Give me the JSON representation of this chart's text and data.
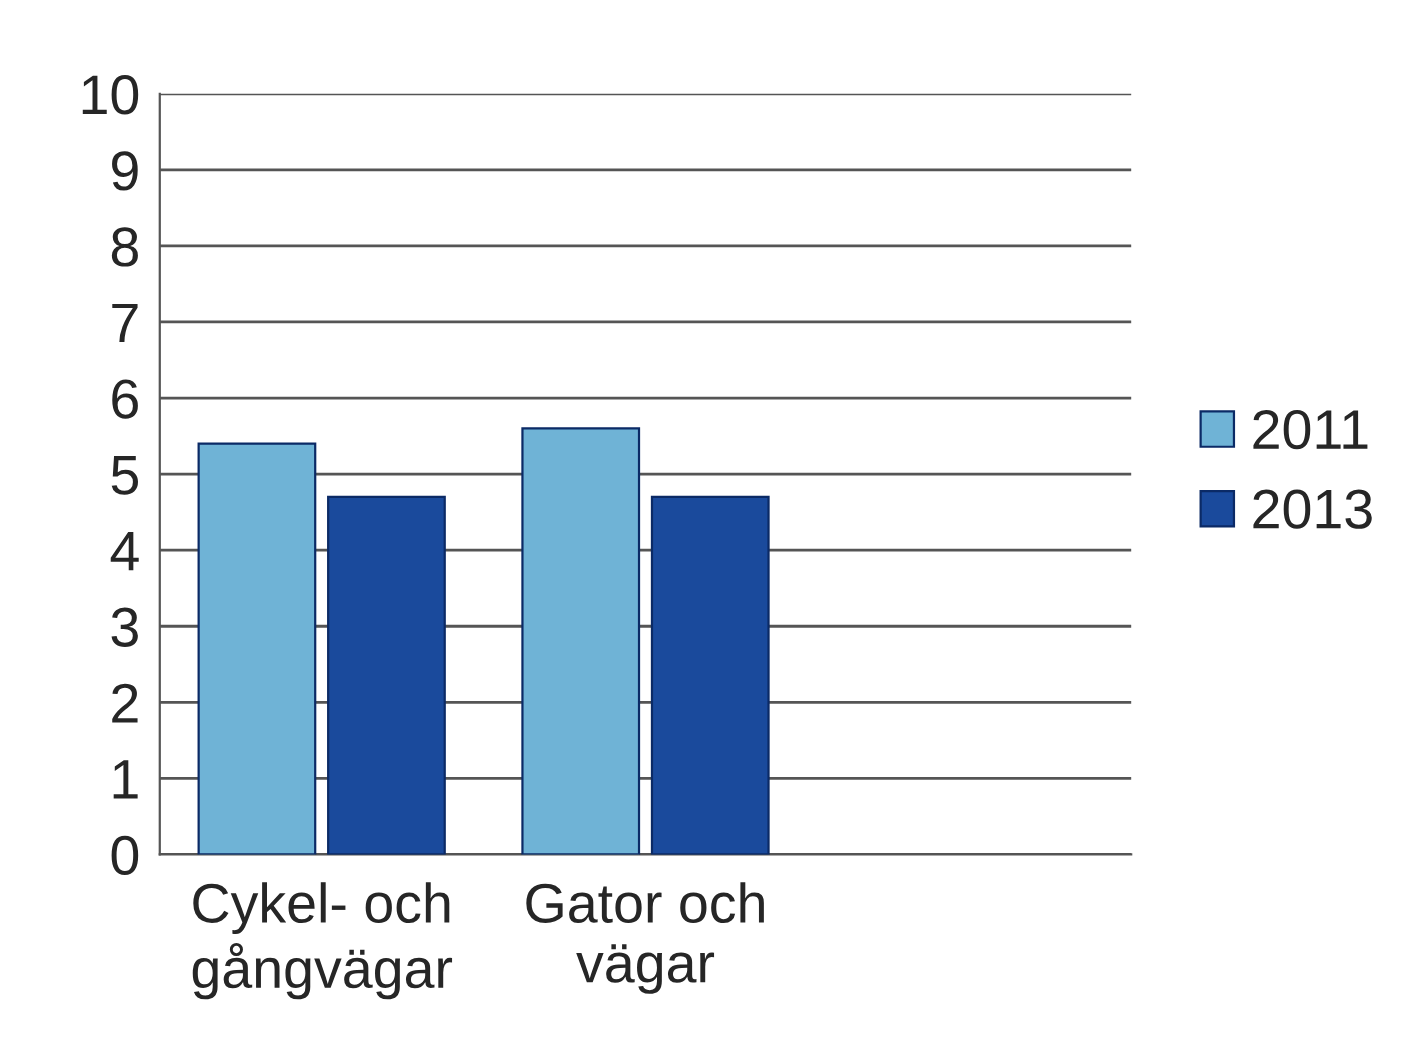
{
  "chart_data": {
    "type": "bar",
    "categories": [
      "Cykel- och\ngångvägar",
      "Gator och\nvägar",
      null
    ],
    "series": [
      {
        "name": "2011",
        "color": "#6fb3d6",
        "values": [
          5.4,
          5.6,
          null
        ]
      },
      {
        "name": "2013",
        "color": "#1a4a9c",
        "values": [
          4.7,
          4.7,
          null
        ]
      }
    ],
    "ylim": [
      0,
      10
    ],
    "yticks": [
      0,
      1,
      2,
      3,
      4,
      5,
      6,
      7,
      8,
      9,
      10
    ],
    "grid": "y",
    "legend": "right"
  }
}
